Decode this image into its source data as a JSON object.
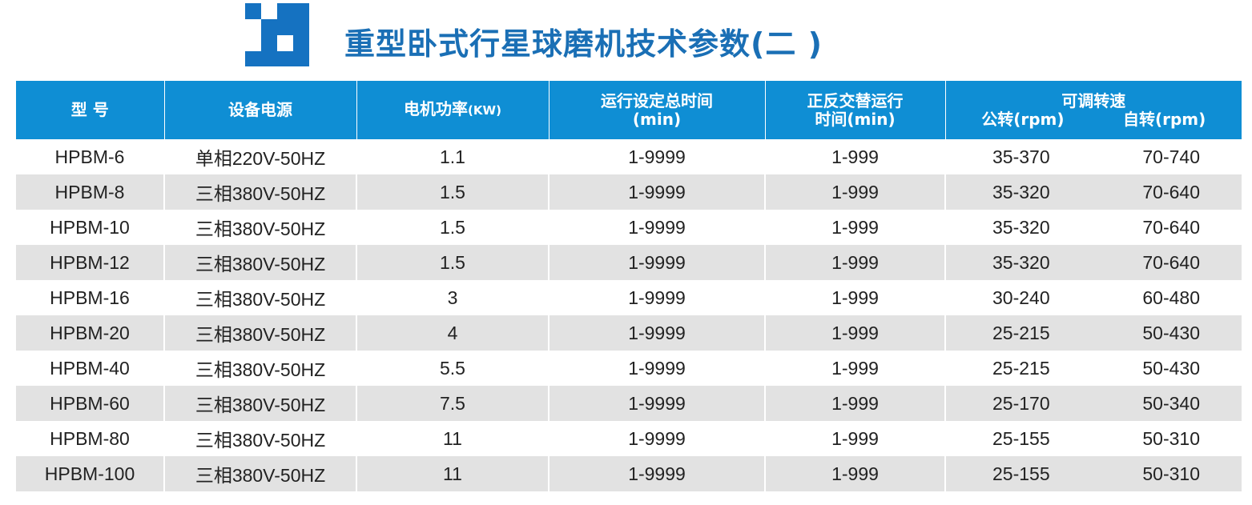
{
  "title": "重型卧式行星球磨机技术参数(二 )",
  "colors": {
    "header_bg": "#0f8ed4",
    "title": "#1a6fb5",
    "logo": "#1572c1",
    "stripe": "#e2e2e2"
  },
  "headers": {
    "model": "型 号",
    "power_supply": "设备电源",
    "motor_power": "电机功率",
    "motor_power_unit": "(KW)",
    "total_time_line1": "运行设定总时间",
    "total_time_line2": "(min)",
    "alt_time_line1": "正反交替运行",
    "alt_time_line2": "时间(min)",
    "speed_title": "可调转速",
    "speed_revolution": "公转(rpm)",
    "speed_rotation": "自转(rpm)"
  },
  "rows": [
    {
      "model": "HPBM-6",
      "power_supply": "单相220V-50HZ",
      "motor_power": "1.1",
      "total_time": "1-9999",
      "alt_time": "1-999",
      "revolution": "35-370",
      "rotation": "70-740"
    },
    {
      "model": "HPBM-8",
      "power_supply": "三相380V-50HZ",
      "motor_power": "1.5",
      "total_time": "1-9999",
      "alt_time": "1-999",
      "revolution": "35-320",
      "rotation": "70-640"
    },
    {
      "model": "HPBM-10",
      "power_supply": "三相380V-50HZ",
      "motor_power": "1.5",
      "total_time": "1-9999",
      "alt_time": "1-999",
      "revolution": "35-320",
      "rotation": "70-640"
    },
    {
      "model": "HPBM-12",
      "power_supply": "三相380V-50HZ",
      "motor_power": "1.5",
      "total_time": "1-9999",
      "alt_time": "1-999",
      "revolution": "35-320",
      "rotation": "70-640"
    },
    {
      "model": "HPBM-16",
      "power_supply": "三相380V-50HZ",
      "motor_power": "3",
      "total_time": "1-9999",
      "alt_time": "1-999",
      "revolution": "30-240",
      "rotation": "60-480"
    },
    {
      "model": "HPBM-20",
      "power_supply": "三相380V-50HZ",
      "motor_power": "4",
      "total_time": "1-9999",
      "alt_time": "1-999",
      "revolution": "25-215",
      "rotation": "50-430"
    },
    {
      "model": "HPBM-40",
      "power_supply": "三相380V-50HZ",
      "motor_power": "5.5",
      "total_time": "1-9999",
      "alt_time": "1-999",
      "revolution": "25-215",
      "rotation": "50-430"
    },
    {
      "model": "HPBM-60",
      "power_supply": "三相380V-50HZ",
      "motor_power": "7.5",
      "total_time": "1-9999",
      "alt_time": "1-999",
      "revolution": "25-170",
      "rotation": "50-340"
    },
    {
      "model": "HPBM-80",
      "power_supply": "三相380V-50HZ",
      "motor_power": "11",
      "total_time": "1-9999",
      "alt_time": "1-999",
      "revolution": "25-155",
      "rotation": "50-310"
    },
    {
      "model": "HPBM-100",
      "power_supply": "三相380V-50HZ",
      "motor_power": "11",
      "total_time": "1-9999",
      "alt_time": "1-999",
      "revolution": "25-155",
      "rotation": "50-310"
    }
  ]
}
